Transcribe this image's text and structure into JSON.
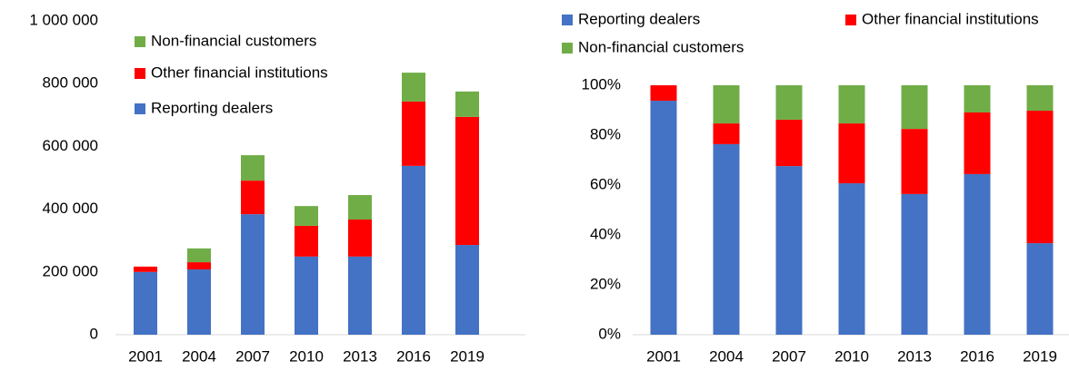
{
  "chart_data": [
    {
      "type": "stacked_bar",
      "categories": [
        "2001",
        "2004",
        "2007",
        "2010",
        "2013",
        "2016",
        "2019"
      ],
      "series": [
        {
          "name": "Reporting dealers",
          "color": "#4472c4",
          "values": [
            200000,
            208000,
            384000,
            249000,
            249000,
            538000,
            286000
          ]
        },
        {
          "name": "Other financial institutions",
          "color": "#ff0000",
          "values": [
            17000,
            23000,
            107000,
            98000,
            118000,
            205000,
            408000
          ]
        },
        {
          "name": "Non-financial customers",
          "color": "#70ad47",
          "values": [
            0,
            44000,
            81000,
            63000,
            78000,
            92000,
            81000
          ]
        }
      ],
      "ylim": [
        0,
        1000000
      ],
      "yticks": [
        0,
        {
          "value": 200000,
          "label": "200 000"
        },
        {
          "value": 400000,
          "label": "400 000"
        },
        {
          "value": 600000,
          "label": "600 000"
        },
        {
          "value": 800000,
          "label": "800 000"
        },
        {
          "value": 1000000,
          "label": "1 000 000"
        }
      ],
      "grid": false
    },
    {
      "type": "stacked_bar",
      "categories": [
        "2001",
        "2004",
        "2007",
        "2010",
        "2013",
        "2016",
        "2019"
      ],
      "series": [
        {
          "name": "Reporting dealers",
          "color": "#4472c4",
          "values": [
            93.8,
            76.4,
            67.6,
            60.7,
            56.4,
            64.4,
            36.7
          ]
        },
        {
          "name": "Other financial institutions",
          "color": "#ff0000",
          "values": [
            6.2,
            8.3,
            18.6,
            24,
            26.1,
            24.7,
            53.1
          ]
        },
        {
          "name": "Non-financial customers",
          "color": "#70ad47",
          "values": [
            0,
            15.3,
            13.8,
            15.3,
            17.5,
            10.9,
            10.2
          ]
        }
      ],
      "ylim": [
        0,
        100
      ],
      "yticks": [
        {
          "value": 0,
          "label": "0%"
        },
        {
          "value": 20,
          "label": "20%"
        },
        {
          "value": 40,
          "label": "40%"
        },
        {
          "value": 60,
          "label": "60%"
        },
        {
          "value": 80,
          "label": "80%"
        },
        {
          "value": 100,
          "label": "100%"
        }
      ],
      "grid": false
    }
  ]
}
